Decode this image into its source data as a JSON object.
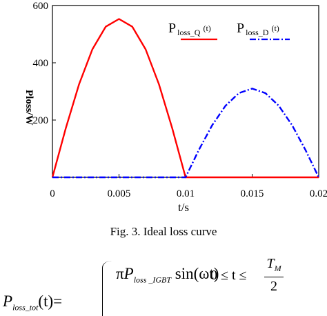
{
  "chart_data": {
    "type": "line",
    "xlabel": "t/s",
    "ylabel": "Ploss/W",
    "xlim": [
      0,
      0.02
    ],
    "ylim": [
      0,
      600
    ],
    "xticks": [
      "0",
      "0.005",
      "0.01",
      "0.015",
      "0.02"
    ],
    "yticks": [
      "600",
      "400",
      "200"
    ],
    "grid": false,
    "legend_position": "top-right",
    "series": [
      {
        "name_main": "P",
        "name_sub": "loss_Q",
        "name_arg": "(t)",
        "color": "#ff0000",
        "style": "solid",
        "x": [
          0,
          0.001,
          0.002,
          0.003,
          0.004,
          0.005,
          0.006,
          0.007,
          0.008,
          0.009,
          0.01,
          0.011,
          0.012,
          0.013,
          0.014,
          0.015,
          0.016,
          0.017,
          0.018,
          0.019,
          0.02
        ],
        "y": [
          0,
          171,
          325,
          447,
          526,
          553,
          526,
          447,
          325,
          171,
          0,
          0,
          0,
          0,
          0,
          0,
          0,
          0,
          0,
          0,
          0
        ]
      },
      {
        "name_main": "P",
        "name_sub": "loss_D",
        "name_arg": "(t)",
        "color": "#0000ff",
        "style": "dashdot",
        "x": [
          0,
          0.001,
          0.002,
          0.003,
          0.004,
          0.005,
          0.006,
          0.007,
          0.008,
          0.009,
          0.01,
          0.011,
          0.012,
          0.013,
          0.014,
          0.015,
          0.016,
          0.017,
          0.018,
          0.019,
          0.02
        ],
        "y": [
          0,
          0,
          0,
          0,
          0,
          0,
          0,
          0,
          0,
          0,
          0,
          96,
          182,
          250,
          294,
          310,
          294,
          250,
          182,
          96,
          0
        ]
      }
    ]
  },
  "caption": "Fig. 3.  Ideal loss curve",
  "equation": {
    "lhs_main": "P",
    "lhs_sub": "loss_tot",
    "lhs_arg": "(t)=",
    "case1_pi": "π",
    "case1_p": "P",
    "case1_sub": "loss _IGBT",
    "case1_rest": " sin(ωt)",
    "cond1_left": "0 ≤ t ≤ ",
    "cond1_num_main": "T",
    "cond1_num_sub": "M",
    "cond1_den": "2"
  }
}
